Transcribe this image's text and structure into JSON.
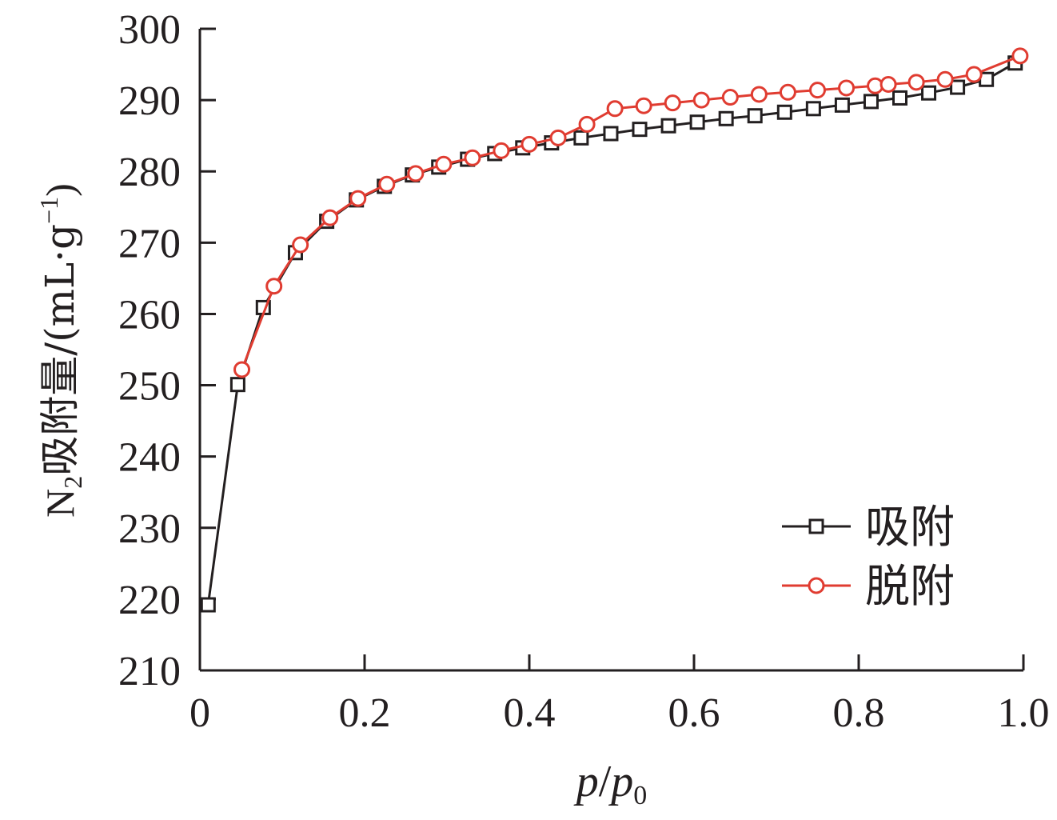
{
  "chart_data": {
    "type": "line",
    "xlabel": "p/p0",
    "xlabel_parts": {
      "p1": "p",
      "slash": "/",
      "p2": "p",
      "sub": "0"
    },
    "ylabel": "N2吸附量/(mL·g−1)",
    "ylabel_parts": {
      "n": "N",
      "n_sub": "2",
      "main": "吸附量/(mL·g",
      "sup": "−1",
      "close": ")"
    },
    "xlim": [
      0,
      1.0
    ],
    "ylim": [
      210,
      300
    ],
    "xticks": [
      0,
      0.2,
      0.4,
      0.6,
      0.8,
      1.0
    ],
    "xtick_labels": [
      "0",
      "0.2",
      "0.4",
      "0.6",
      "0.8",
      "1.0"
    ],
    "yticks": [
      210,
      220,
      230,
      240,
      250,
      260,
      270,
      280,
      290,
      300
    ],
    "ytick_labels": [
      "210",
      "220",
      "230",
      "240",
      "250",
      "260",
      "270",
      "280",
      "290",
      "300"
    ],
    "grid": false,
    "legend_position": "bottom-right",
    "series": [
      {
        "name": "吸附",
        "color": "#231f20",
        "marker": "square",
        "x": [
          0.01,
          0.046,
          0.077,
          0.116,
          0.154,
          0.19,
          0.224,
          0.258,
          0.29,
          0.325,
          0.358,
          0.392,
          0.427,
          0.463,
          0.499,
          0.534,
          0.569,
          0.604,
          0.639,
          0.674,
          0.71,
          0.745,
          0.78,
          0.815,
          0.85,
          0.885,
          0.92,
          0.955,
          0.99
        ],
        "y": [
          219.2,
          250.1,
          260.9,
          268.6,
          273.0,
          276.0,
          277.9,
          279.5,
          280.6,
          281.7,
          282.5,
          283.3,
          284.0,
          284.7,
          285.3,
          285.9,
          286.4,
          286.9,
          287.4,
          287.8,
          288.3,
          288.8,
          289.3,
          289.8,
          290.3,
          291.0,
          291.8,
          292.9,
          295.2
        ]
      },
      {
        "name": "脱附",
        "color": "#e03c31",
        "marker": "circle",
        "x": [
          0.051,
          0.09,
          0.122,
          0.158,
          0.192,
          0.227,
          0.262,
          0.296,
          0.331,
          0.366,
          0.4,
          0.435,
          0.47,
          0.504,
          0.539,
          0.574,
          0.609,
          0.644,
          0.679,
          0.714,
          0.75,
          0.785,
          0.82,
          0.836,
          0.87,
          0.905,
          0.94,
          0.996
        ],
        "y": [
          252.2,
          263.9,
          269.7,
          273.5,
          276.2,
          278.2,
          279.7,
          281.0,
          281.9,
          282.9,
          283.8,
          284.7,
          286.6,
          288.8,
          289.2,
          289.6,
          290.0,
          290.4,
          290.8,
          291.1,
          291.4,
          291.7,
          292.0,
          292.2,
          292.5,
          292.9,
          293.6,
          296.2
        ]
      }
    ]
  }
}
